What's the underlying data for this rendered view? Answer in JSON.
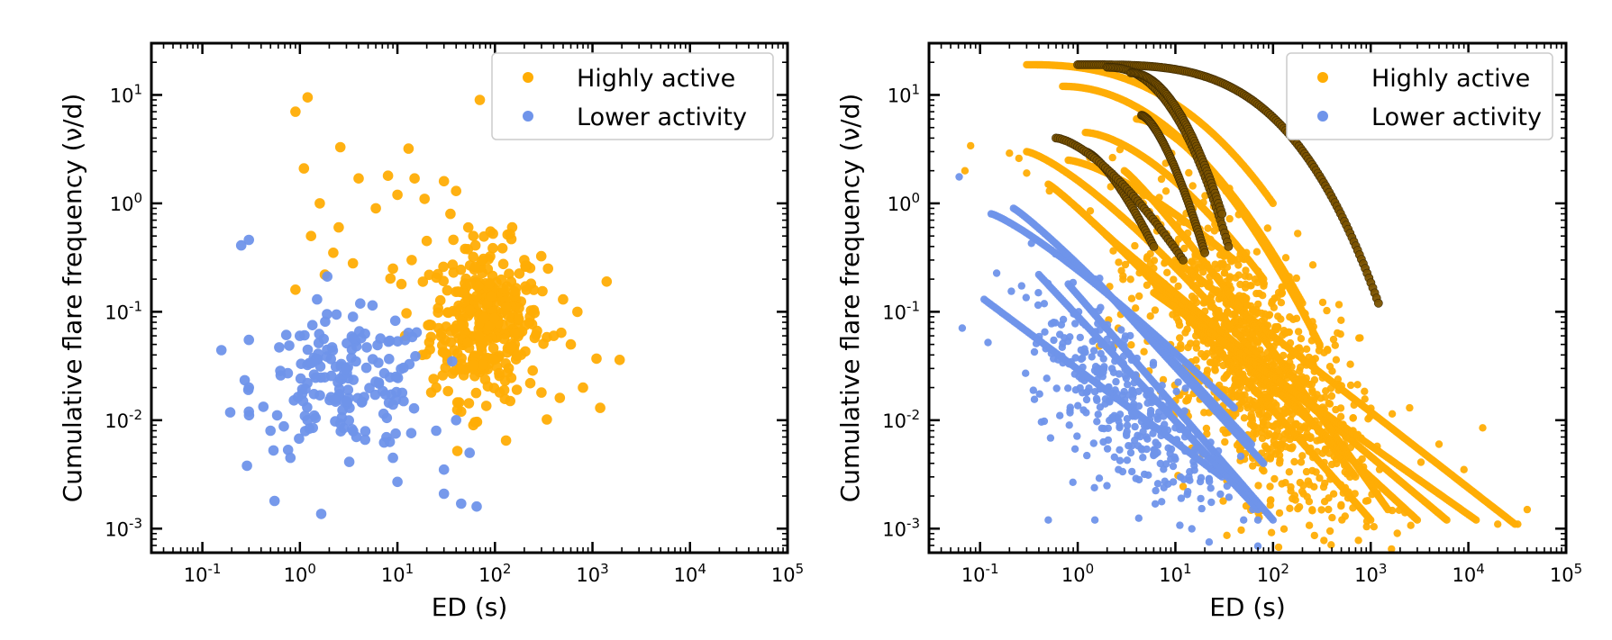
{
  "colors": {
    "highly_active": "#FFAD05",
    "lower_activity": "#6F94EA",
    "dark_track": "#7A5200"
  },
  "panels": [
    {
      "xlabel": "ED (s)",
      "ylabel": "Cumulative flare frequency (ν/d)",
      "legend": [
        {
          "label": "Highly active",
          "color": "#FFAD05"
        },
        {
          "label": "Lower activity",
          "color": "#6F94EA"
        }
      ]
    },
    {
      "xlabel": "ED (s)",
      "ylabel": "Cumulative flare frequency (ν/d)",
      "legend": [
        {
          "label": "Highly active",
          "color": "#FFAD05"
        },
        {
          "label": "Lower activity",
          "color": "#6F94EA"
        }
      ]
    }
  ],
  "tick_labels": {
    "x": [
      {
        "base": "10",
        "exp": "-1"
      },
      {
        "base": "10",
        "exp": "0"
      },
      {
        "base": "10",
        "exp": "1"
      },
      {
        "base": "10",
        "exp": "2"
      },
      {
        "base": "10",
        "exp": "3"
      },
      {
        "base": "10",
        "exp": "4"
      },
      {
        "base": "10",
        "exp": "5"
      }
    ],
    "y": [
      {
        "base": "10",
        "exp": "-3"
      },
      {
        "base": "10",
        "exp": "-2"
      },
      {
        "base": "10",
        "exp": "-1"
      },
      {
        "base": "10",
        "exp": "0"
      },
      {
        "base": "10",
        "exp": "1"
      }
    ]
  },
  "chart_data": [
    {
      "type": "scatter",
      "x_scale": "log",
      "y_scale": "log",
      "xlim": [
        0.03,
        100000
      ],
      "ylim": [
        0.0006,
        30
      ],
      "xlabel": "ED (s)",
      "ylabel": "Cumulative flare frequency (ν/d)",
      "legend_position": "top-right",
      "grid": false,
      "series": [
        {
          "name": "Highly active",
          "color": "#FFAD05",
          "points": [
            [
              0.9,
              7.0
            ],
            [
              1.2,
              9.5
            ],
            [
              70,
              9.0
            ],
            [
              1.1,
              2.1
            ],
            [
              2.6,
              3.3
            ],
            [
              13,
              3.2
            ],
            [
              1.6,
              1.0
            ],
            [
              4,
              1.7
            ],
            [
              8,
              1.8
            ],
            [
              15,
              1.7
            ],
            [
              30,
              1.6
            ],
            [
              1.3,
              0.5
            ],
            [
              2.5,
              0.6
            ],
            [
              6,
              0.9
            ],
            [
              10,
              1.2
            ],
            [
              19,
              1.1
            ],
            [
              40,
              1.3
            ],
            [
              150,
              0.6
            ],
            [
              2.2,
              0.35
            ],
            [
              3.5,
              0.28
            ],
            [
              1.8,
              0.22
            ],
            [
              0.9,
              0.16
            ],
            [
              20,
              0.45
            ],
            [
              35,
              0.8
            ],
            [
              60,
              0.5
            ],
            [
              90,
              0.55
            ],
            [
              200,
              0.3
            ],
            [
              350,
              0.25
            ],
            [
              500,
              0.13
            ],
            [
              700,
              0.1
            ],
            [
              1400,
              0.19
            ],
            [
              1200,
              0.013
            ],
            [
              1900,
              0.036
            ],
            [
              1100,
              0.037
            ],
            [
              600,
              0.05
            ],
            [
              400,
              0.06
            ],
            [
              800,
              0.02
            ],
            [
              300,
              0.018
            ],
            [
              130,
              0.0065
            ],
            [
              60,
              0.009
            ],
            [
              45,
              0.012
            ],
            [
              25,
              0.02
            ],
            [
              18,
              0.04
            ],
            [
              12,
              0.06
            ],
            [
              11,
              0.18
            ],
            [
              14,
              0.3
            ],
            [
              9,
              0.25
            ]
          ],
          "cluster": {
            "center": [
              80,
              0.08
            ],
            "spread": [
              0.28,
              0.35
            ],
            "count": 360
          }
        },
        {
          "name": "Lower activity",
          "color": "#6F94EA",
          "points": [
            [
              0.25,
              0.41
            ],
            [
              0.3,
              0.46
            ],
            [
              0.3,
              0.055
            ],
            [
              0.3,
              0.02
            ],
            [
              0.3,
              0.012
            ],
            [
              0.5,
              0.008
            ],
            [
              0.55,
              0.0018
            ],
            [
              0.8,
              0.0045
            ],
            [
              1.5,
              0.13
            ],
            [
              1,
              0.06
            ],
            [
              3.5,
              0.09
            ],
            [
              9,
              0.0045
            ],
            [
              10,
              0.0027
            ],
            [
              30,
              0.0035
            ],
            [
              30,
              0.0021
            ],
            [
              45,
              0.0017
            ],
            [
              65,
              0.0016
            ],
            [
              55,
              0.005
            ],
            [
              40,
              0.01
            ],
            [
              25,
              0.008
            ]
          ],
          "cluster": {
            "center": [
              3,
              0.022
            ],
            "spread": [
              0.45,
              0.3
            ],
            "count": 170
          }
        }
      ]
    },
    {
      "type": "scatter",
      "x_scale": "log",
      "y_scale": "log",
      "xlim": [
        0.03,
        100000
      ],
      "ylim": [
        0.0006,
        30
      ],
      "xlabel": "ED (s)",
      "ylabel": "Cumulative flare frequency (ν/d)",
      "legend_position": "top-right",
      "grid": false,
      "series": [
        {
          "name": "Highly active",
          "color": "#FFAD05",
          "tracks": [
            {
              "x_start": 0.3,
              "x_end": 100,
              "y_start": 19,
              "y_end": 1.0,
              "n": 160,
              "curve": 2.5
            },
            {
              "x_start": 0.7,
              "x_end": 200,
              "y_start": 12,
              "y_end": 0.12,
              "n": 180,
              "curve": 2.0
            },
            {
              "x_start": 0.3,
              "x_end": 700,
              "y_start": 3.0,
              "y_end": 0.003,
              "n": 200,
              "curve": 1.3
            },
            {
              "x_start": 0.5,
              "x_end": 1000,
              "y_start": 1.5,
              "y_end": 0.0012,
              "n": 220,
              "curve": 1.1
            },
            {
              "x_start": 1.0,
              "x_end": 3000,
              "y_start": 0.9,
              "y_end": 0.0012,
              "n": 220,
              "curve": 1.0
            },
            {
              "x_start": 2.0,
              "x_end": 6000,
              "y_start": 0.5,
              "y_end": 0.0012,
              "n": 220,
              "curve": 1.0
            },
            {
              "x_start": 4.0,
              "x_end": 300,
              "y_start": 6.0,
              "y_end": 0.05,
              "n": 150,
              "curve": 1.6
            },
            {
              "x_start": 1.2,
              "x_end": 80,
              "y_start": 4.5,
              "y_end": 0.2,
              "n": 130,
              "curve": 1.6
            },
            {
              "x_start": 10,
              "x_end": 30000,
              "y_start": 0.3,
              "y_end": 0.0011,
              "n": 200,
              "curve": 1.0
            },
            {
              "x_start": 3.0,
              "x_end": 1500,
              "y_start": 2.0,
              "y_end": 0.0015,
              "n": 200,
              "curve": 1.1
            },
            {
              "x_start": 0.8,
              "x_end": 40,
              "y_start": 2.5,
              "y_end": 0.3,
              "n": 110,
              "curve": 1.4
            },
            {
              "x_start": 6.0,
              "x_end": 12000,
              "y_start": 0.15,
              "y_end": 0.0012,
              "n": 180,
              "curve": 1.0
            }
          ],
          "points": [
            [
              0.07,
              2.0
            ],
            [
              0.08,
              3.4
            ],
            [
              0.2,
              2.9
            ],
            [
              0.25,
              2.6
            ],
            [
              0.3,
              1.9
            ],
            [
              14000,
              0.0085
            ],
            [
              20000,
              0.0011
            ],
            [
              32000,
              0.0011
            ],
            [
              40000,
              0.0015
            ],
            [
              9000,
              0.0035
            ],
            [
              5000,
              0.006
            ],
            [
              2500,
              0.013
            ]
          ],
          "cluster": {
            "center": [
              60,
              0.03
            ],
            "spread": [
              0.55,
              0.55
            ],
            "count": 1100
          }
        },
        {
          "name": "Lower activity",
          "color": "#6F94EA",
          "tracks": [
            {
              "x_start": 0.13,
              "x_end": 40,
              "y_start": 0.8,
              "y_end": 0.013,
              "n": 130,
              "curve": 1.2
            },
            {
              "x_start": 0.22,
              "x_end": 60,
              "y_start": 0.9,
              "y_end": 0.006,
              "n": 140,
              "curve": 1.1
            },
            {
              "x_start": 0.11,
              "x_end": 30,
              "y_start": 0.13,
              "y_end": 0.003,
              "n": 120,
              "curve": 1.0
            },
            {
              "x_start": 0.4,
              "x_end": 70,
              "y_start": 0.22,
              "y_end": 0.0015,
              "n": 130,
              "curve": 1.0
            },
            {
              "x_start": 0.8,
              "x_end": 100,
              "y_start": 0.18,
              "y_end": 0.0012,
              "n": 130,
              "curve": 1.0
            },
            {
              "x_start": 1.5,
              "x_end": 80,
              "y_start": 0.2,
              "y_end": 0.004,
              "n": 110,
              "curve": 1.0
            }
          ],
          "points": [
            [
              0.5,
              0.0012
            ],
            [
              1.5,
              0.0012
            ],
            [
              50,
              0.0012
            ],
            [
              70,
              0.0012
            ]
          ],
          "cluster": {
            "center": [
              3,
              0.015
            ],
            "spread": [
              0.5,
              0.38
            ],
            "count": 350
          }
        },
        {
          "name": "",
          "color": "#7A5200",
          "style": "dark-tracks",
          "tracks": [
            {
              "x_start": 1.0,
              "x_end": 1200,
              "y_start": 19,
              "y_end": 0.12,
              "n": 160,
              "curve": 3.5
            },
            {
              "x_start": 2.0,
              "x_end": 35,
              "y_start": 18,
              "y_end": 0.4,
              "n": 90,
              "curve": 2.3
            },
            {
              "x_start": 3.5,
              "x_end": 30,
              "y_start": 16,
              "y_end": 0.8,
              "n": 80,
              "curve": 2.0
            },
            {
              "x_start": 4.5,
              "x_end": 20,
              "y_start": 6.5,
              "y_end": 0.35,
              "n": 70,
              "curve": 1.5
            },
            {
              "x_start": 1.2,
              "x_end": 6.0,
              "y_start": 3.0,
              "y_end": 0.4,
              "n": 50,
              "curve": 1.4
            },
            {
              "x_start": 0.6,
              "x_end": 12,
              "y_start": 4.0,
              "y_end": 0.3,
              "n": 60,
              "curve": 1.5
            }
          ]
        }
      ]
    }
  ]
}
